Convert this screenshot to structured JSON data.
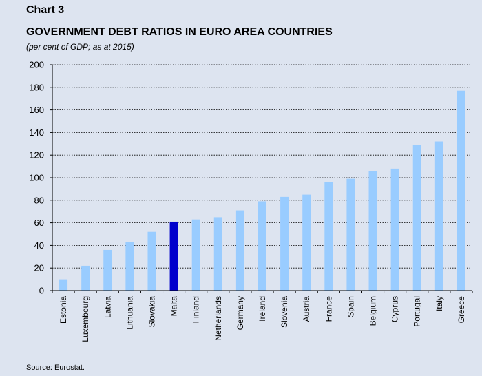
{
  "header": {
    "chart_number": "Chart 3",
    "title": "GOVERNMENT DEBT RATIOS IN EURO AREA COUNTRIES",
    "subtitle": "(per cent of GDP; as at 2015)"
  },
  "footer": {
    "source": "Source: Eurostat."
  },
  "colors": {
    "background": "#dde4f0",
    "bar": "#99ccff",
    "highlight_bar": "#0000cc",
    "grid": "#000000"
  },
  "chart_data": {
    "type": "bar",
    "categories": [
      "Estonia",
      "Luxembourg",
      "Latvia",
      "Lithuania",
      "Slovakia",
      "Malta",
      "Finland",
      "Netherlands",
      "Germany",
      "Ireland",
      "Slovenia",
      "Austria",
      "France",
      "Spain",
      "Belgium",
      "Cyprus",
      "Portugal",
      "Italy",
      "Greece"
    ],
    "values": [
      10,
      22,
      36,
      43,
      52,
      61,
      63,
      65,
      71,
      79,
      83,
      85,
      96,
      99,
      106,
      108,
      129,
      132,
      177
    ],
    "highlight": "Malta",
    "ylim": [
      0,
      200
    ],
    "yticks": [
      0,
      20,
      40,
      60,
      80,
      100,
      120,
      140,
      160,
      180,
      200
    ],
    "grid": "horizontal dotted",
    "xlabel": "",
    "ylabel": ""
  }
}
